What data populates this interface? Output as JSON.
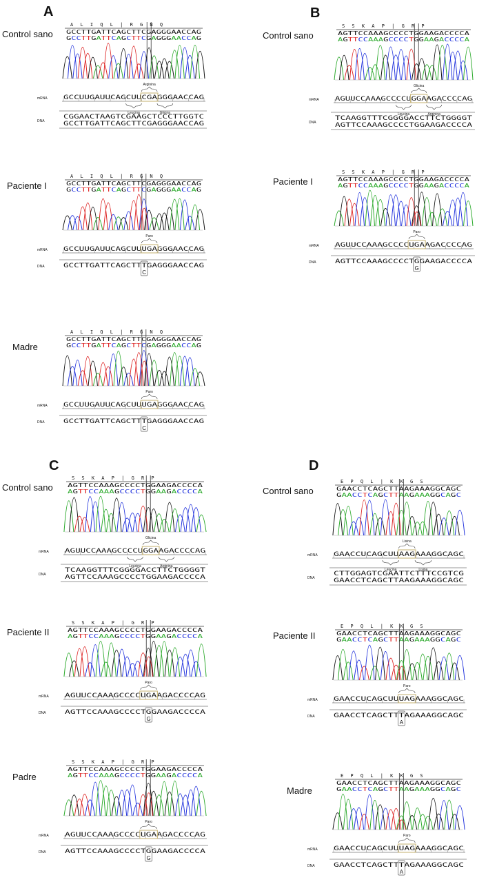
{
  "panels": [
    {
      "letter": "A"
    },
    {
      "letter": "B"
    },
    {
      "letter": "C"
    },
    {
      "letter": "D"
    }
  ],
  "labels": {
    "mrna": "mRNA",
    "dna": "DNA"
  },
  "colors": {
    "A": "#2aa92a",
    "C": "#2233dd",
    "G": "#111111",
    "T": "#dd2222",
    "box": "#c8b67a"
  },
  "blocks": [
    {
      "label": "Control sano",
      "aa": "A L I Q L | R G N Q",
      "seq1": "GCCTTGATTCAGCTTCGAGGGAACCAG",
      "seq2": "GCCTTGATTCAGCTTCGAGGGAACCAG",
      "mrna": "GCCUUGAUUCAGCUUCGAGGGAACCAG",
      "above": "Arginina",
      "below1": "Leucina",
      "below2": "Glicina",
      "dna1": "CGGAACTAAGTCGAAGCTCCCTTGGTC",
      "dna2": "GCCTTGATTCAGCTTCGAGGGAACCAG"
    },
    {
      "label": "Paciente I",
      "aa": "A L I Q L | R G N Q",
      "seq1": "GCCTTGATTCAGCTTCGAGGGAACCAG",
      "seq2": "GCCTTGATTCAGCTTCGAGGGAACCAG",
      "mrna": "GCCUUGAUUCAGCUUUGAGGGAACCAG",
      "above": "Paro",
      "dna1": "GCCTTGATTCAGCTTTGAGGGAACCAG",
      "mut": "C"
    },
    {
      "label": "Madre",
      "aa": "A L I Q L | R G N Q",
      "seq1": "GCCTTGATTCAGCTTCGAGGGAACCAG",
      "seq2": "GCCTTGATTCAGCTTCGAGGGAACCAG",
      "mrna": "GCCUUGAUUCAGCUUUGAGGGAACCAG",
      "above": "Paro",
      "dna1": "GCCTTGATTCAGCTTTGAGGGAACCAG",
      "mut": "C"
    },
    {
      "label": "Control sano",
      "aa": "S S K A P | G R P",
      "seq1": "AGTTCCAAAGCCCCTGGAAGACCCCA",
      "seq2": "AGTTCCAAAGCCCCTGGAAGACCCCA",
      "mrna": "AGUUCCAAAGCCCCUGGAAGACCCCAG",
      "above": "Glicina",
      "below1": "Leucina",
      "below2": "Arginina",
      "dna1": "TCAAGGTTTCGGGGACCTTCTGGGGT",
      "dna2": "AGTTCCAAAGCCCCTGGAAGACCCCA"
    },
    {
      "label": "Paciente I",
      "aa": "S S K A P | G R P",
      "seq1": "AGTTCCAAAGCCCCTGGAAGACCCCA",
      "seq2": "AGTTCCAAAGCCCCTGGAAGACCCCA",
      "mrna": "AGUUCCAAAGCCCCUGAAGACCCCAG",
      "above": "Paro",
      "dna1": "AGTTCCAAAGCCCCTGGAAGACCCCA",
      "mut": "G"
    },
    {
      "label": "Control sano",
      "aa": "S S K A P | G R P",
      "seq1": "AGTTCCAAAGCCCCTGGAAGACCCCA",
      "seq2": "AGTTCCAAAGCCCCTGGAAGACCCCA",
      "mrna": "AGUUCCAAAGCCCCUGGAAGACCCCAG",
      "above": "Glicina",
      "below1": "Leucina",
      "below2": "Arginina",
      "dna1": "TCAAGGTTTCGGGGACCTTCTGGGGT",
      "dna2": "AGTTCCAAAGCCCCTGGAAGACCCCA"
    },
    {
      "label": "Paciente II",
      "aa": "S S K A P | G R P",
      "seq1": "AGTTCCAAAGCCCCTGGAAGACCCCA",
      "seq2": "AGTTCCAAAGCCCCTGGAAGACCCCA",
      "mrna": "AGUUCCAAAGCCCCUGAAGACCCCAG",
      "above": "Paro",
      "dna1": "AGTTCCAAAGCCCCTGGAAGACCCCA",
      "mut": "G"
    },
    {
      "label": "Padre",
      "aa": "S S K A P | G R P",
      "seq1": "AGTTCCAAAGCCCCTGGAAGACCCCA",
      "seq2": "AGTTCCAAAGCCCCTGGAAGACCCCA",
      "mrna": "AGUUCCAAAGCCCCUGAAGACCCCAG",
      "above": "Paro",
      "dna1": "AGTTCCAAAGCCCCTGGAAGACCCCA",
      "mut": "G"
    },
    {
      "label": "Control sano",
      "aa": "E P Q L | K K G S",
      "seq1": "GAACCTCAGCTTAAGAAAGGCAGC",
      "seq2": "GAACCTCAGCTTAAGAAAGGCAGC",
      "mrna": "GAACCUCAGCUUAAGAAAGGCAGC",
      "above": "Lisina",
      "below1": "Leucina",
      "below2": "Lisina",
      "dna1": "CTTGGAGTCGAATTCTTTCCGTCG",
      "dna2": "GAACCTCAGCTTAAGAAAGGCAGC"
    },
    {
      "label": "Paciente II",
      "aa": "E P Q L | K K G S",
      "seq1": "GAACCTCAGCTTAAGAAAGGCAGC",
      "seq2": "GAACCTCAGCTTAAGAAAGGCAGC",
      "mrna": "GAACCUCAGCUUUAGAAAGGCAGC",
      "above": "Paro",
      "dna1": "GAACCTCAGCTTTAGAAAGGCAGC",
      "mut": "A"
    },
    {
      "label": "Madre",
      "aa": "E P Q L | K K G S",
      "seq1": "GAACCTCAGCTTAAGAAAGGCAGC",
      "seq2": "GAACCTCAGCTTAAGAAAGGCAGC",
      "mrna": "GAACCUCAGCUUUAGAAAGGCAGC",
      "above": "Paro",
      "dna1": "GAACCTCAGCTTTAGAAAGGCAGC",
      "mut": "A"
    }
  ]
}
